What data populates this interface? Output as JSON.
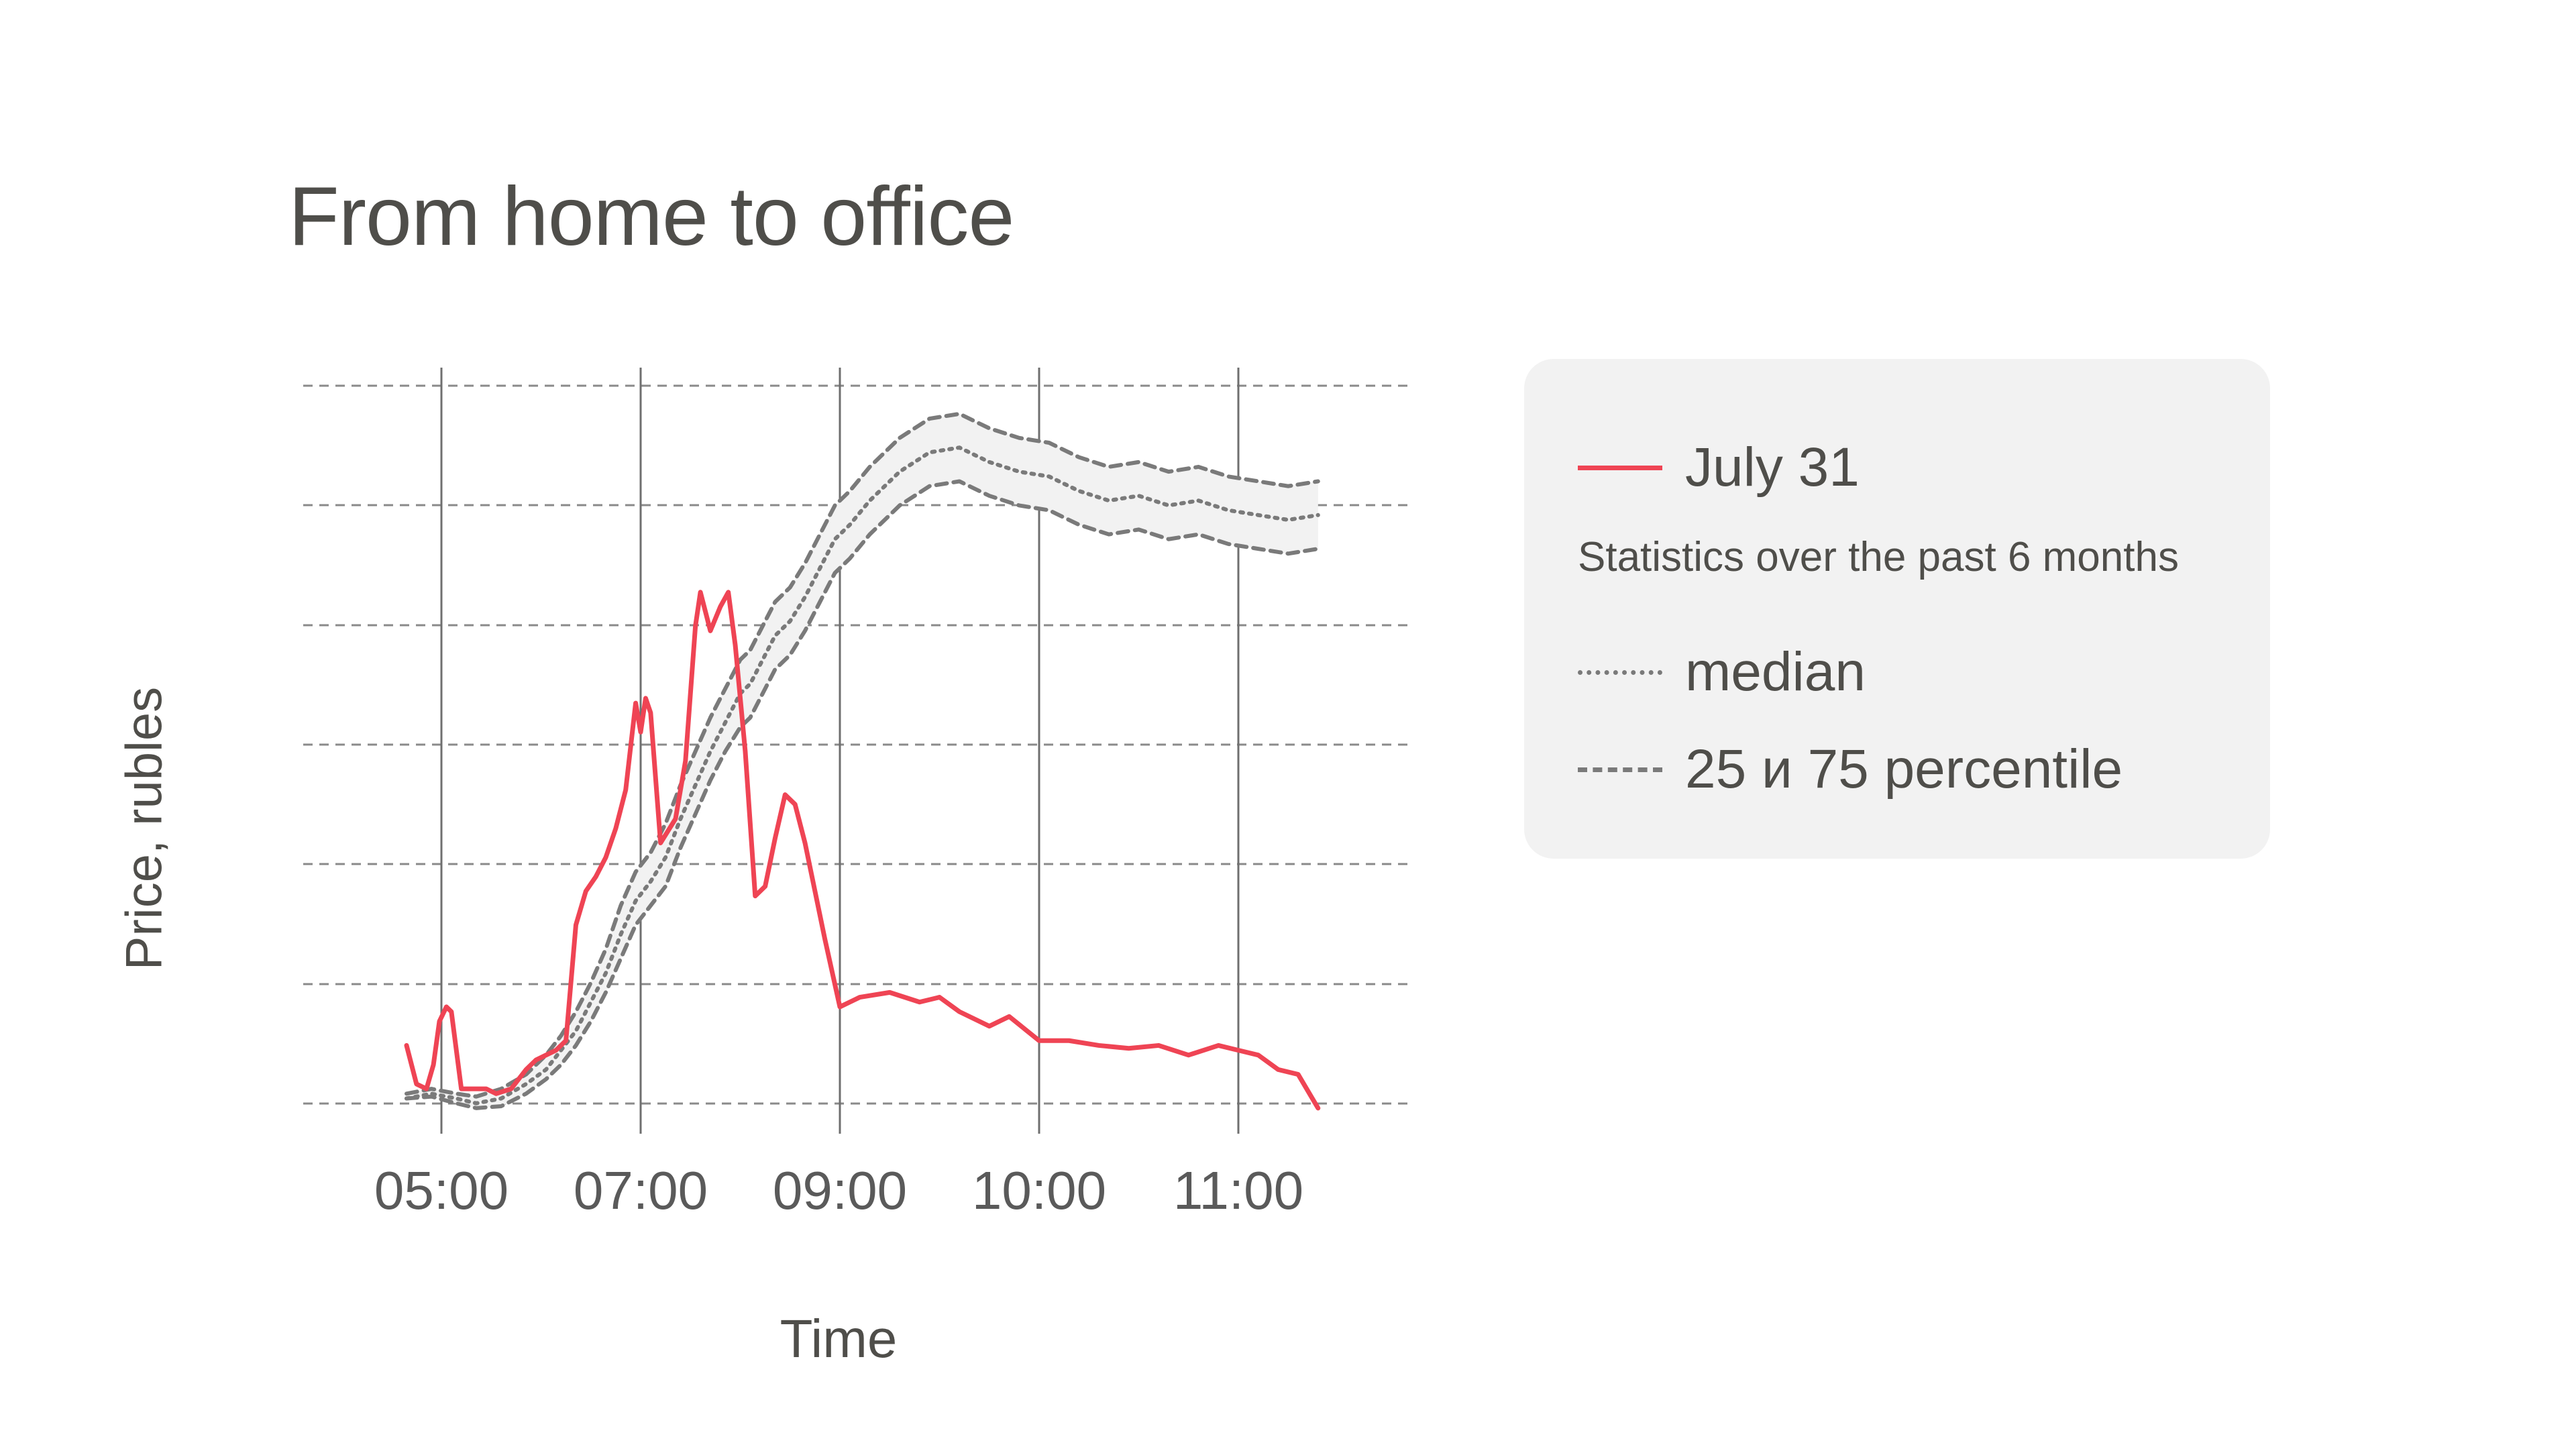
{
  "title": "From home to office",
  "legend": {
    "items": [
      {
        "label": "July 31",
        "color": "#ef4454",
        "style": "solid"
      },
      {
        "label": "median",
        "color": "#7a7a7a",
        "style": "dotted"
      },
      {
        "label": "25 и 75 percentile",
        "color": "#7a7a7a",
        "style": "dashed"
      }
    ],
    "note": "Statistics over the past 6 months",
    "background": "#f2f2f2"
  },
  "chart_data": {
    "type": "line",
    "title": "From home to office",
    "xlabel": "Time",
    "ylabel": "Price, rubles",
    "x_ticks": [
      "05:00",
      "07:00",
      "09:00",
      "10:00",
      "11:00"
    ],
    "y_ticks_labels_shown": false,
    "grid": {
      "horizontal": "dashed",
      "vertical": "solid"
    },
    "band": {
      "between": [
        "25 percentile",
        "75 percentile"
      ],
      "fill": "#f2f2f2"
    },
    "legend_position": "right",
    "series": [
      {
        "name": "July 31",
        "color": "#ef4454",
        "line": "solid",
        "points": [
          [
            4.65,
            0.95
          ],
          [
            4.75,
            0.55
          ],
          [
            4.85,
            0.5
          ],
          [
            4.92,
            0.75
          ],
          [
            4.98,
            1.2
          ],
          [
            5.05,
            1.35
          ],
          [
            5.1,
            1.3
          ],
          [
            5.2,
            0.5
          ],
          [
            5.3,
            0.5
          ],
          [
            5.45,
            0.5
          ],
          [
            5.55,
            0.45
          ],
          [
            5.7,
            0.5
          ],
          [
            5.85,
            0.7
          ],
          [
            5.95,
            0.8
          ],
          [
            6.05,
            0.85
          ],
          [
            6.15,
            0.9
          ],
          [
            6.25,
            1.0
          ],
          [
            6.35,
            2.2
          ],
          [
            6.45,
            2.55
          ],
          [
            6.55,
            2.7
          ],
          [
            6.65,
            2.9
          ],
          [
            6.75,
            3.2
          ],
          [
            6.85,
            3.6
          ],
          [
            6.95,
            4.5
          ],
          [
            7.0,
            4.2
          ],
          [
            7.05,
            4.55
          ],
          [
            7.1,
            4.4
          ],
          [
            7.2,
            3.05
          ],
          [
            7.35,
            3.3
          ],
          [
            7.45,
            3.9
          ],
          [
            7.55,
            5.3
          ],
          [
            7.6,
            5.65
          ],
          [
            7.7,
            5.25
          ],
          [
            7.8,
            5.5
          ],
          [
            7.88,
            5.65
          ],
          [
            7.95,
            5.1
          ],
          [
            8.05,
            4.0
          ],
          [
            8.15,
            2.5
          ],
          [
            8.25,
            2.6
          ],
          [
            8.35,
            3.1
          ],
          [
            8.45,
            3.55
          ],
          [
            8.55,
            3.45
          ],
          [
            8.65,
            3.05
          ],
          [
            8.75,
            2.55
          ],
          [
            8.85,
            2.05
          ],
          [
            9.0,
            1.35
          ],
          [
            9.1,
            1.45
          ],
          [
            9.25,
            1.5
          ],
          [
            9.4,
            1.4
          ],
          [
            9.5,
            1.45
          ],
          [
            9.6,
            1.3
          ],
          [
            9.75,
            1.15
          ],
          [
            9.85,
            1.25
          ],
          [
            10.0,
            1.0
          ],
          [
            10.15,
            1.0
          ],
          [
            10.3,
            0.95
          ],
          [
            10.45,
            0.92
          ],
          [
            10.6,
            0.95
          ],
          [
            10.75,
            0.85
          ],
          [
            10.9,
            0.95
          ],
          [
            11.0,
            0.9
          ],
          [
            11.1,
            0.85
          ],
          [
            11.2,
            0.7
          ],
          [
            11.3,
            0.65
          ],
          [
            11.4,
            0.3
          ]
        ]
      },
      {
        "name": "median",
        "color": "#7a7a7a",
        "line": "dotted",
        "points": [
          [
            4.65,
            0.4
          ],
          [
            4.9,
            0.45
          ],
          [
            5.15,
            0.4
          ],
          [
            5.35,
            0.35
          ],
          [
            5.6,
            0.4
          ],
          [
            5.85,
            0.55
          ],
          [
            6.05,
            0.7
          ],
          [
            6.2,
            0.9
          ],
          [
            6.35,
            1.1
          ],
          [
            6.5,
            1.4
          ],
          [
            6.65,
            1.7
          ],
          [
            6.8,
            2.1
          ],
          [
            6.95,
            2.45
          ],
          [
            7.1,
            2.65
          ],
          [
            7.25,
            2.9
          ],
          [
            7.4,
            3.3
          ],
          [
            7.55,
            3.65
          ],
          [
            7.7,
            4.0
          ],
          [
            7.85,
            4.3
          ],
          [
            8.0,
            4.6
          ],
          [
            8.1,
            4.7
          ],
          [
            8.2,
            4.9
          ],
          [
            8.35,
            5.2
          ],
          [
            8.5,
            5.35
          ],
          [
            8.65,
            5.6
          ],
          [
            8.8,
            5.9
          ],
          [
            8.95,
            6.2
          ],
          [
            9.05,
            6.35
          ],
          [
            9.15,
            6.6
          ],
          [
            9.3,
            6.9
          ],
          [
            9.45,
            7.1
          ],
          [
            9.6,
            7.15
          ],
          [
            9.75,
            7.0
          ],
          [
            9.9,
            6.9
          ],
          [
            10.05,
            6.85
          ],
          [
            10.2,
            6.7
          ],
          [
            10.35,
            6.6
          ],
          [
            10.5,
            6.65
          ],
          [
            10.65,
            6.55
          ],
          [
            10.8,
            6.6
          ],
          [
            10.95,
            6.5
          ],
          [
            11.1,
            6.45
          ],
          [
            11.25,
            6.4
          ],
          [
            11.4,
            6.45
          ]
        ]
      },
      {
        "name": "25 percentile",
        "color": "#7a7a7a",
        "line": "dashed",
        "points": [
          [
            4.65,
            0.4
          ],
          [
            4.9,
            0.42
          ],
          [
            5.15,
            0.35
          ],
          [
            5.35,
            0.3
          ],
          [
            5.6,
            0.32
          ],
          [
            5.85,
            0.45
          ],
          [
            6.05,
            0.6
          ],
          [
            6.2,
            0.75
          ],
          [
            6.35,
            0.95
          ],
          [
            6.5,
            1.2
          ],
          [
            6.65,
            1.5
          ],
          [
            6.8,
            1.85
          ],
          [
            6.95,
            2.2
          ],
          [
            7.1,
            2.4
          ],
          [
            7.25,
            2.6
          ],
          [
            7.4,
            3.0
          ],
          [
            7.55,
            3.35
          ],
          [
            7.7,
            3.7
          ],
          [
            7.85,
            4.0
          ],
          [
            8.0,
            4.25
          ],
          [
            8.1,
            4.35
          ],
          [
            8.2,
            4.55
          ],
          [
            8.35,
            4.85
          ],
          [
            8.5,
            5.0
          ],
          [
            8.65,
            5.25
          ],
          [
            8.8,
            5.55
          ],
          [
            8.95,
            5.85
          ],
          [
            9.05,
            6.0
          ],
          [
            9.15,
            6.25
          ],
          [
            9.3,
            6.55
          ],
          [
            9.45,
            6.75
          ],
          [
            9.6,
            6.8
          ],
          [
            9.75,
            6.65
          ],
          [
            9.9,
            6.55
          ],
          [
            10.05,
            6.5
          ],
          [
            10.2,
            6.35
          ],
          [
            10.35,
            6.25
          ],
          [
            10.5,
            6.3
          ],
          [
            10.65,
            6.2
          ],
          [
            10.8,
            6.25
          ],
          [
            10.95,
            6.15
          ],
          [
            11.1,
            6.1
          ],
          [
            11.25,
            6.05
          ],
          [
            11.4,
            6.1
          ]
        ]
      },
      {
        "name": "75 percentile",
        "color": "#7a7a7a",
        "line": "dashed",
        "points": [
          [
            4.65,
            0.45
          ],
          [
            4.9,
            0.5
          ],
          [
            5.15,
            0.45
          ],
          [
            5.35,
            0.42
          ],
          [
            5.6,
            0.5
          ],
          [
            5.85,
            0.65
          ],
          [
            6.05,
            0.85
          ],
          [
            6.2,
            1.05
          ],
          [
            6.35,
            1.3
          ],
          [
            6.5,
            1.6
          ],
          [
            6.65,
            1.95
          ],
          [
            6.8,
            2.4
          ],
          [
            6.95,
            2.75
          ],
          [
            7.1,
            2.95
          ],
          [
            7.25,
            3.25
          ],
          [
            7.4,
            3.65
          ],
          [
            7.55,
            4.0
          ],
          [
            7.7,
            4.35
          ],
          [
            7.85,
            4.65
          ],
          [
            8.0,
            4.95
          ],
          [
            8.1,
            5.05
          ],
          [
            8.2,
            5.25
          ],
          [
            8.35,
            5.55
          ],
          [
            8.5,
            5.7
          ],
          [
            8.65,
            5.95
          ],
          [
            8.8,
            6.25
          ],
          [
            8.95,
            6.55
          ],
          [
            9.05,
            6.7
          ],
          [
            9.15,
            6.95
          ],
          [
            9.3,
            7.25
          ],
          [
            9.45,
            7.45
          ],
          [
            9.6,
            7.5
          ],
          [
            9.75,
            7.35
          ],
          [
            9.9,
            7.25
          ],
          [
            10.05,
            7.2
          ],
          [
            10.2,
            7.05
          ],
          [
            10.35,
            6.95
          ],
          [
            10.5,
            7.0
          ],
          [
            10.65,
            6.9
          ],
          [
            10.8,
            6.95
          ],
          [
            10.95,
            6.85
          ],
          [
            11.1,
            6.8
          ],
          [
            11.25,
            6.75
          ],
          [
            11.4,
            6.8
          ]
        ]
      }
    ]
  }
}
